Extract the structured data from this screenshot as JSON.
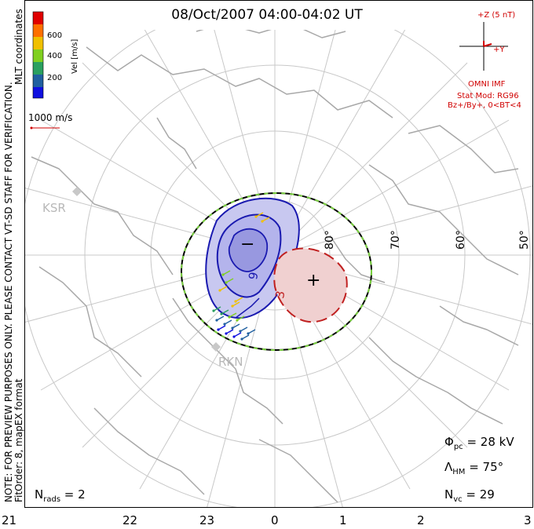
{
  "title": "08/Oct/2007 04:00-04:02 UT",
  "side_note_1": "NOTE: FOR PREVIEW PURPOSES ONLY. PLEASE CONTACT VT-SD STAFF FOR VERIFICATION.",
  "side_note_2": "FitOrder: 8, mapEX format",
  "coord_label": "MLT coordinates",
  "colorbar": {
    "label": "Vel [m/s]",
    "ticks": [
      "600",
      "400",
      "200"
    ],
    "colors": [
      "#e00000",
      "#ff7000",
      "#f0c000",
      "#80d020",
      "#2aa060",
      "#2060a0",
      "#1010e0"
    ]
  },
  "vector_scale": "1000 m/s",
  "imf": {
    "z_label": "+Z (5 nT)",
    "y_label": "+Y",
    "source": "OMNI IMF",
    "stat_mod": "Stat Mod: RG96",
    "conditions": "Bz+/By+, 0<BT<4"
  },
  "stations": [
    {
      "name": "KSR"
    },
    {
      "name": "RKN"
    }
  ],
  "lat_labels": [
    "80°",
    "70°",
    "60°",
    "50°"
  ],
  "contours": {
    "neg_symbol": "−",
    "pos_symbol": "+",
    "neg_value": "9",
    "pos_value": "3"
  },
  "stats": {
    "phi_pc_sym": "Φ",
    "phi_pc_sub": "pc",
    "phi_pc_value": " = 28 kV",
    "lambda_hm_sym": "Λ",
    "lambda_hm_sub": "HM",
    "lambda_hm_value": " = 75°",
    "n_vc_sym": "N",
    "n_vc_sub": "vc",
    "n_vc_value": " = 29",
    "n_rads_sym": "N",
    "n_rads_sub": "rads",
    "n_rads_value": " = 2"
  },
  "mlt_ticks": [
    "21",
    "22",
    "23",
    "0",
    "1",
    "2",
    "3"
  ],
  "colors": {
    "grid": "#c8c8c8",
    "coast": "#a8a8a8",
    "negative": "#1a1ab0",
    "positive": "#c02020",
    "hmb": "#000000",
    "hmb_dash": "#7ad040",
    "imf": "#d00000"
  }
}
